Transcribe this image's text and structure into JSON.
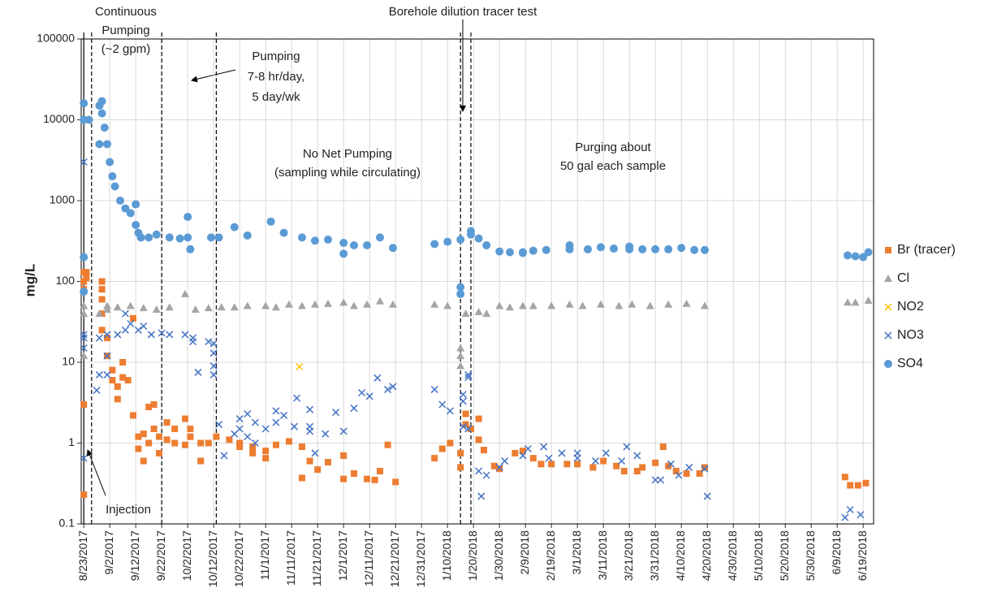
{
  "chart_data": {
    "type": "scatter",
    "log_y": true,
    "grid": true,
    "legend": "right",
    "y_label": "mg/L",
    "xlim": [
      "2017-08-22",
      "2018-06-23"
    ],
    "xticks": [
      {
        "value": "2017-08-23",
        "label": "8/23/2017"
      },
      {
        "value": "2017-09-02",
        "label": "9/2/2017"
      },
      {
        "value": "2017-09-12",
        "label": "9/12/2017"
      },
      {
        "value": "2017-09-22",
        "label": "9/22/2017"
      },
      {
        "value": "2017-10-02",
        "label": "10/2/2017"
      },
      {
        "value": "2017-10-12",
        "label": "10/12/2017"
      },
      {
        "value": "2017-10-22",
        "label": "10/22/2017"
      },
      {
        "value": "2017-11-01",
        "label": "11/1/2017"
      },
      {
        "value": "2017-11-11",
        "label": "11/11/2017"
      },
      {
        "value": "2017-11-21",
        "label": "11/21/2017"
      },
      {
        "value": "2017-12-01",
        "label": "12/1/2017"
      },
      {
        "value": "2017-12-11",
        "label": "12/11/2017"
      },
      {
        "value": "2017-12-21",
        "label": "12/21/2017"
      },
      {
        "value": "2017-12-31",
        "label": "12/31/2017"
      },
      {
        "value": "2018-01-10",
        "label": "1/10/2018"
      },
      {
        "value": "2018-01-20",
        "label": "1/20/2018"
      },
      {
        "value": "2018-01-30",
        "label": "1/30/2018"
      },
      {
        "value": "2018-02-09",
        "label": "2/9/2018"
      },
      {
        "value": "2018-02-19",
        "label": "2/19/2018"
      },
      {
        "value": "2018-03-01",
        "label": "3/1/2018"
      },
      {
        "value": "2018-03-11",
        "label": "3/11/2018"
      },
      {
        "value": "2018-03-21",
        "label": "3/21/2018"
      },
      {
        "value": "2018-03-31",
        "label": "3/31/2018"
      },
      {
        "value": "2018-04-10",
        "label": "4/10/2018"
      },
      {
        "value": "2018-04-20",
        "label": "4/20/2018"
      },
      {
        "value": "2018-04-30",
        "label": "4/30/2018"
      },
      {
        "value": "2018-05-10",
        "label": "5/10/2018"
      },
      {
        "value": "2018-05-20",
        "label": "5/20/2018"
      },
      {
        "value": "2018-05-30",
        "label": "5/30/2018"
      },
      {
        "value": "2018-06-09",
        "label": "6/9/2018"
      },
      {
        "value": "2018-06-19",
        "label": "6/19/2018"
      }
    ],
    "ylim": [
      0.1,
      100000
    ],
    "yticks": [
      0.1,
      1,
      10,
      100,
      1000,
      10000,
      100000
    ],
    "event_lines": [
      {
        "date": "2017-08-23",
        "style": "solid"
      },
      {
        "date": "2017-08-26",
        "style": "dashed"
      },
      {
        "date": "2017-09-22",
        "style": "dashed"
      },
      {
        "date": "2017-10-13",
        "style": "dashed"
      },
      {
        "date": "2018-01-15",
        "style": "dashed"
      },
      {
        "date": "2018-01-19",
        "style": "dashed"
      }
    ],
    "annotations": [
      [
        "Continuous",
        "Pumping",
        "(~2 gpm)"
      ],
      [
        "Pumping",
        "7-8 hr/day,",
        "5 day/wk"
      ],
      [
        "No Net Pumping",
        "(sampling while circulating)"
      ],
      [
        "Purging about",
        "50 gal each sample"
      ],
      [
        "Borehole dilution tracer test"
      ],
      [
        "Injection"
      ]
    ],
    "series": [
      {
        "name": "Br (tracer)",
        "color": "#ed7d31",
        "marker": "square",
        "x": [
          "2017-08-23",
          "2017-08-23",
          "2017-08-23",
          "2017-08-23",
          "2017-08-23",
          "2017-08-24",
          "2017-08-24",
          "2017-08-30",
          "2017-08-30",
          "2017-08-30",
          "2017-08-30",
          "2017-08-30",
          "2017-09-01",
          "2017-09-01",
          "2017-09-03",
          "2017-09-03",
          "2017-09-05",
          "2017-09-05",
          "2017-09-07",
          "2017-09-07",
          "2017-09-09",
          "2017-09-11",
          "2017-09-11",
          "2017-09-13",
          "2017-09-13",
          "2017-09-15",
          "2017-09-15",
          "2017-09-17",
          "2017-09-17",
          "2017-09-19",
          "2017-09-19",
          "2017-09-21",
          "2017-09-21",
          "2017-09-24",
          "2017-09-24",
          "2017-09-27",
          "2017-09-27",
          "2017-10-01",
          "2017-10-01",
          "2017-10-03",
          "2017-10-03",
          "2017-10-07",
          "2017-10-07",
          "2017-10-10",
          "2017-10-13",
          "2017-10-18",
          "2017-10-22",
          "2017-10-22",
          "2017-10-27",
          "2017-10-27",
          "2017-11-01",
          "2017-11-01",
          "2017-11-05",
          "2017-11-10",
          "2017-11-15",
          "2017-11-15",
          "2017-11-18",
          "2017-11-21",
          "2017-11-25",
          "2017-12-01",
          "2017-12-01",
          "2017-12-05",
          "2017-12-10",
          "2017-12-13",
          "2017-12-15",
          "2017-12-18",
          "2017-12-21",
          "2018-01-05",
          "2018-01-08",
          "2018-01-11",
          "2018-01-15",
          "2018-01-15",
          "2018-01-17",
          "2018-01-17",
          "2018-01-19",
          "2018-01-22",
          "2018-01-22",
          "2018-01-24",
          "2018-01-28",
          "2018-01-30",
          "2018-02-05",
          "2018-02-08",
          "2018-02-12",
          "2018-02-15",
          "2018-02-19",
          "2018-02-25",
          "2018-03-01",
          "2018-03-07",
          "2018-03-11",
          "2018-03-16",
          "2018-03-19",
          "2018-03-24",
          "2018-03-26",
          "2018-03-31",
          "2018-04-03",
          "2018-04-05",
          "2018-04-08",
          "2018-04-12",
          "2018-04-17",
          "2018-04-19",
          "2018-06-12",
          "2018-06-14",
          "2018-06-17",
          "2018-06-20"
        ],
        "values": [
          0.23,
          3,
          100,
          130,
          80,
          110,
          130,
          100,
          80,
          60,
          40,
          25,
          20,
          12,
          8,
          6,
          5,
          3.5,
          10,
          6.5,
          6,
          2.2,
          35,
          0.85,
          1.2,
          0.6,
          1.3,
          2.8,
          1.0,
          3.0,
          1.5,
          0.75,
          1.2,
          1.8,
          1.1,
          1.5,
          1.0,
          2.0,
          0.95,
          1.2,
          1.5,
          0.6,
          1.0,
          1.0,
          1.2,
          1.1,
          0.9,
          1.0,
          0.75,
          0.9,
          0.8,
          0.65,
          0.95,
          1.05,
          0.37,
          0.9,
          0.6,
          0.47,
          0.58,
          0.36,
          0.7,
          0.42,
          0.36,
          0.35,
          0.45,
          0.95,
          0.33,
          0.65,
          0.85,
          1.0,
          0.5,
          0.75,
          1.7,
          2.3,
          1.5,
          2.0,
          1.1,
          0.82,
          0.52,
          0.48,
          0.75,
          0.8,
          0.65,
          0.55,
          0.55,
          0.55,
          0.55,
          0.5,
          0.6,
          0.52,
          0.45,
          0.45,
          0.5,
          0.57,
          0.9,
          0.52,
          0.45,
          0.42,
          0.42,
          0.5,
          0.38,
          0.3,
          0.3,
          0.32
        ]
      },
      {
        "name": "Cl",
        "color": "#a5a5a5",
        "marker": "triangle",
        "x": [
          "2017-08-23",
          "2017-08-23",
          "2017-08-23",
          "2017-08-29",
          "2017-09-01",
          "2017-09-01",
          "2017-09-05",
          "2017-09-10",
          "2017-09-15",
          "2017-09-20",
          "2017-09-25",
          "2017-10-01",
          "2017-10-05",
          "2017-10-10",
          "2017-10-15",
          "2017-10-20",
          "2017-10-25",
          "2017-11-01",
          "2017-11-05",
          "2017-11-10",
          "2017-11-15",
          "2017-11-20",
          "2017-11-25",
          "2017-12-01",
          "2017-12-05",
          "2017-12-10",
          "2017-12-15",
          "2017-12-20",
          "2018-01-05",
          "2018-01-10",
          "2018-01-15",
          "2018-01-15",
          "2018-01-15",
          "2018-01-17",
          "2018-01-22",
          "2018-01-25",
          "2018-01-30",
          "2018-02-03",
          "2018-02-08",
          "2018-02-12",
          "2018-02-19",
          "2018-02-26",
          "2018-03-03",
          "2018-03-10",
          "2018-03-17",
          "2018-03-22",
          "2018-03-29",
          "2018-04-05",
          "2018-04-12",
          "2018-04-19",
          "2018-06-13",
          "2018-06-16",
          "2018-06-21"
        ],
        "values": [
          40,
          50,
          12,
          40,
          50,
          45,
          48,
          50,
          47,
          45,
          48,
          70,
          45,
          47,
          48,
          48,
          50,
          50,
          48,
          52,
          50,
          52,
          53,
          55,
          50,
          52,
          57,
          52,
          52,
          50,
          12,
          15,
          9,
          40,
          42,
          40,
          50,
          48,
          50,
          50,
          50,
          52,
          50,
          52,
          50,
          52,
          50,
          52,
          53,
          50,
          55,
          55,
          58
        ]
      },
      {
        "name": "NO2",
        "color": "#ffc000",
        "marker": "x",
        "x": [
          "2017-11-14"
        ],
        "values": [
          8.8
        ]
      },
      {
        "name": "NO3",
        "color": "#4472c4",
        "marker": "x",
        "x": [
          "2017-08-23",
          "2017-08-23",
          "2017-08-23",
          "2017-08-23",
          "2017-08-23",
          "2017-08-28",
          "2017-08-29",
          "2017-08-29",
          "2017-09-01",
          "2017-09-01",
          "2017-09-01",
          "2017-09-05",
          "2017-09-08",
          "2017-09-08",
          "2017-09-10",
          "2017-09-13",
          "2017-09-15",
          "2017-09-18",
          "2017-09-22",
          "2017-09-25",
          "2017-10-01",
          "2017-10-04",
          "2017-10-04",
          "2017-10-06",
          "2017-10-10",
          "2017-10-12",
          "2017-10-12",
          "2017-10-12",
          "2017-10-12",
          "2017-10-14",
          "2017-10-16",
          "2017-10-20",
          "2017-10-22",
          "2017-10-22",
          "2017-10-25",
          "2017-10-25",
          "2017-10-28",
          "2017-10-28",
          "2017-11-01",
          "2017-11-05",
          "2017-11-05",
          "2017-11-08",
          "2017-11-12",
          "2017-11-13",
          "2017-11-18",
          "2017-11-18",
          "2017-11-18",
          "2017-11-20",
          "2017-11-24",
          "2017-11-28",
          "2017-12-01",
          "2017-12-05",
          "2017-12-08",
          "2017-12-11",
          "2017-12-14",
          "2017-12-18",
          "2017-12-20",
          "2018-01-05",
          "2018-01-08",
          "2018-01-11",
          "2018-01-16",
          "2018-01-16",
          "2018-01-16",
          "2018-01-18",
          "2018-01-18",
          "2018-01-18",
          "2018-01-22",
          "2018-01-23",
          "2018-01-25",
          "2018-01-30",
          "2018-02-01",
          "2018-02-08",
          "2018-02-10",
          "2018-02-16",
          "2018-02-18",
          "2018-02-23",
          "2018-03-01",
          "2018-03-01",
          "2018-03-08",
          "2018-03-12",
          "2018-03-18",
          "2018-03-20",
          "2018-03-24",
          "2018-03-31",
          "2018-04-02",
          "2018-04-06",
          "2018-04-09",
          "2018-04-13",
          "2018-04-19",
          "2018-04-20",
          "2018-06-12",
          "2018-06-14",
          "2018-06-18"
        ],
        "values": [
          3000,
          20,
          15,
          0.65,
          22,
          4.5,
          7,
          20,
          22,
          7,
          12,
          22,
          25,
          40,
          30,
          25,
          28,
          22,
          23,
          22,
          22,
          18,
          20,
          7.5,
          18,
          13,
          9,
          7,
          17,
          1.7,
          0.7,
          1.3,
          1.5,
          2.0,
          2.3,
          1.2,
          1.8,
          1.0,
          1.5,
          2.5,
          1.8,
          2.2,
          1.6,
          3.6,
          1.6,
          1.4,
          2.6,
          0.75,
          1.3,
          2.4,
          1.4,
          2.7,
          4.2,
          3.8,
          6.4,
          4.6,
          5.0,
          4.6,
          3.0,
          2.5,
          1.6,
          3.3,
          4.0,
          7.0,
          6.5,
          1.5,
          0.45,
          0.22,
          0.4,
          0.5,
          0.6,
          0.7,
          0.85,
          0.9,
          0.65,
          0.75,
          0.65,
          0.75,
          0.6,
          0.75,
          0.6,
          0.9,
          0.7,
          0.35,
          0.35,
          0.55,
          0.4,
          0.5,
          0.48,
          0.22,
          0.12,
          0.15,
          0.13
        ]
      },
      {
        "name": "SO4",
        "color": "#5b9bd5",
        "marker": "circle",
        "x": [
          "2017-08-23",
          "2017-08-23",
          "2017-08-23",
          "2017-08-23",
          "2017-08-25",
          "2017-08-29",
          "2017-08-29",
          "2017-08-30",
          "2017-08-30",
          "2017-08-31",
          "2017-09-01",
          "2017-09-02",
          "2017-09-03",
          "2017-09-04",
          "2017-09-06",
          "2017-09-08",
          "2017-09-10",
          "2017-09-12",
          "2017-09-12",
          "2017-09-13",
          "2017-09-14",
          "2017-09-17",
          "2017-09-20",
          "2017-09-25",
          "2017-09-29",
          "2017-10-02",
          "2017-10-02",
          "2017-10-03",
          "2017-10-11",
          "2017-10-14",
          "2017-10-20",
          "2017-10-25",
          "2017-11-03",
          "2017-11-08",
          "2017-11-15",
          "2017-11-20",
          "2017-11-25",
          "2017-12-01",
          "2017-12-01",
          "2017-12-05",
          "2017-12-10",
          "2017-12-15",
          "2017-12-20",
          "2018-01-05",
          "2018-01-10",
          "2018-01-15",
          "2018-01-15",
          "2018-01-15",
          "2018-01-19",
          "2018-01-19",
          "2018-01-22",
          "2018-01-25",
          "2018-01-30",
          "2018-02-03",
          "2018-02-08",
          "2018-02-08",
          "2018-02-12",
          "2018-02-17",
          "2018-02-26",
          "2018-02-26",
          "2018-03-05",
          "2018-03-10",
          "2018-03-15",
          "2018-03-21",
          "2018-03-21",
          "2018-03-26",
          "2018-03-31",
          "2018-04-05",
          "2018-04-10",
          "2018-04-15",
          "2018-04-19",
          "2018-06-13",
          "2018-06-16",
          "2018-06-19",
          "2018-06-21"
        ],
        "values": [
          10000,
          16000,
          200,
          75,
          10000,
          5000,
          15000,
          17000,
          12000,
          8000,
          5000,
          3000,
          2000,
          1500,
          1000,
          800,
          700,
          900,
          500,
          400,
          350,
          350,
          380,
          350,
          340,
          630,
          350,
          250,
          350,
          350,
          470,
          370,
          550,
          400,
          350,
          320,
          330,
          300,
          220,
          280,
          280,
          350,
          260,
          290,
          310,
          85,
          70,
          330,
          420,
          380,
          340,
          280,
          235,
          230,
          225,
          230,
          240,
          245,
          250,
          280,
          250,
          265,
          255,
          250,
          270,
          250,
          250,
          250,
          260,
          245,
          245,
          210,
          205,
          200,
          230
        ]
      }
    ]
  }
}
